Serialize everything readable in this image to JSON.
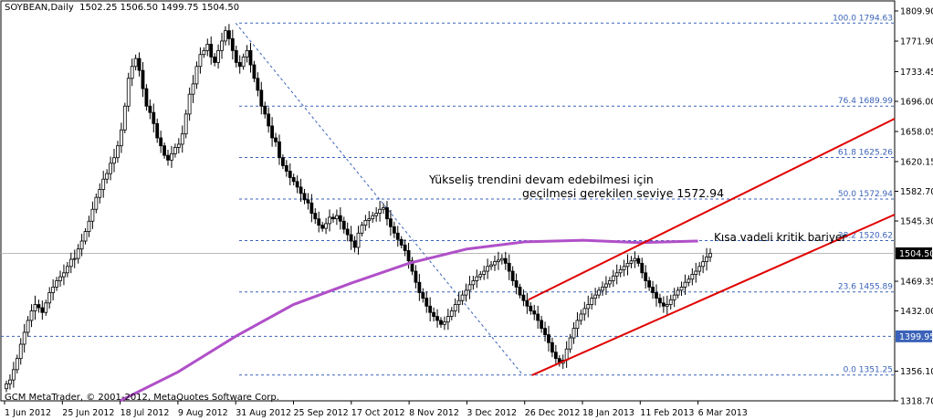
{
  "header": {
    "symbol": "SOYBEAN,Daily",
    "ohlc": "1502.25 1506.50 1499.75 1504.50"
  },
  "copyright": "GCM MetaTrader, © 2001-2012, MetaQuotes Software Corp.",
  "annotations": {
    "trend_line1": "Yükseliş trendini devam edebilmesi için",
    "trend_line2": "geçilmesi gerekilen seviye 1572.94",
    "barrier": "Kısa vadeli kritik bariyer"
  },
  "colors": {
    "candle": "#000000",
    "ma": "#b050c8",
    "channel": "#e00000",
    "fib": "#3a62b8",
    "fib_text": "#3a62b8",
    "grid_border": "#000000"
  },
  "chart_data": {
    "type": "candlestick",
    "current_price": "1504.50",
    "support_label": "1399.95",
    "y_axis": {
      "min": 1318.7,
      "max": 1809.9,
      "ticks": [
        "1809.90",
        "1771.90",
        "1733.45",
        "1696.00",
        "1658.05",
        "1620.15",
        "1582.70",
        "1545.30",
        "1469.35",
        "1432.00",
        "1356.10",
        "1318.70"
      ]
    },
    "x_axis": {
      "labels": [
        "1 Jun 2012",
        "25 Jun 2012",
        "18 Jul 2012",
        "9 Aug 2012",
        "31 Aug 2012",
        "25 Sep 2012",
        "17 Oct 2012",
        "8 Nov 2012",
        "3 Dec 2012",
        "26 Dec 2012",
        "18 Jan 2013",
        "11 Feb 2013",
        "6 Mar 2013"
      ]
    },
    "fibonacci": [
      {
        "label": "100.0 1794.63",
        "value": 1794.63
      },
      {
        "label": "76.4 1689.99",
        "value": 1689.99
      },
      {
        "label": "61.8 1625.26",
        "value": 1625.26
      },
      {
        "label": "50.0 1572.94",
        "value": 1572.94
      },
      {
        "label": "38.2 1520.62",
        "value": 1520.62
      },
      {
        "label": "23.6 1455.89",
        "value": 1455.89
      },
      {
        "label": "0.0 1351.25",
        "value": 1351.25
      }
    ],
    "support_level": 1399.95,
    "moving_average": [
      {
        "x": "18 Jul 2012",
        "y": 1318.7
      },
      {
        "x": "9 Aug 2012",
        "y": 1355
      },
      {
        "x": "31 Aug 2012",
        "y": 1400
      },
      {
        "x": "25 Sep 2012",
        "y": 1440
      },
      {
        "x": "17 Oct 2012",
        "y": 1467
      },
      {
        "x": "8 Nov 2012",
        "y": 1492
      },
      {
        "x": "3 Dec 2012",
        "y": 1510
      },
      {
        "x": "26 Dec 2012",
        "y": 1519
      },
      {
        "x": "18 Jan 2013",
        "y": 1521
      },
      {
        "x": "11 Feb 2013",
        "y": 1518
      },
      {
        "x": "6 Mar 2013",
        "y": 1520
      }
    ],
    "channel_upper": [
      {
        "x": "26 Dec 2012",
        "y": 1446
      },
      {
        "x": "6 Mar 2013",
        "y": 1530
      }
    ],
    "channel_lower": [
      {
        "x": "26 Dec 2012",
        "y": 1351
      },
      {
        "x": "6 Mar 2013",
        "y": 1448
      }
    ],
    "fib_drawn_from": [
      {
        "x": "31 Aug 2012",
        "y": 1794.63
      },
      {
        "x": "26 Dec 2012",
        "y": 1351.25
      }
    ],
    "closes": [
      1340,
      1345,
      1358,
      1372,
      1390,
      1405,
      1420,
      1432,
      1440,
      1436,
      1430,
      1442,
      1455,
      1462,
      1470,
      1475,
      1480,
      1488,
      1497,
      1498,
      1510,
      1520,
      1532,
      1545,
      1560,
      1575,
      1585,
      1598,
      1605,
      1618,
      1625,
      1640,
      1660,
      1690,
      1725,
      1740,
      1750,
      1735,
      1712,
      1690,
      1682,
      1668,
      1650,
      1640,
      1628,
      1622,
      1630,
      1638,
      1642,
      1655,
      1680,
      1705,
      1718,
      1740,
      1755,
      1760,
      1768,
      1752,
      1745,
      1760,
      1772,
      1785,
      1775,
      1760,
      1745,
      1740,
      1752,
      1760,
      1742,
      1725,
      1710,
      1690,
      1680,
      1665,
      1650,
      1645,
      1625,
      1615,
      1608,
      1600,
      1595,
      1588,
      1580,
      1572,
      1568,
      1555,
      1548,
      1540,
      1536,
      1542,
      1550,
      1548,
      1552,
      1545,
      1535,
      1528,
      1520,
      1512,
      1530,
      1540,
      1546,
      1548,
      1552,
      1555,
      1560,
      1562,
      1548,
      1538,
      1530,
      1522,
      1515,
      1508,
      1495,
      1482,
      1468,
      1455,
      1448,
      1438,
      1430,
      1425,
      1420,
      1415,
      1418,
      1425,
      1432,
      1440,
      1445,
      1452,
      1458,
      1465,
      1470,
      1475,
      1478,
      1482,
      1488,
      1490,
      1494,
      1496,
      1498,
      1492,
      1482,
      1470,
      1462,
      1452,
      1445,
      1438,
      1432,
      1428,
      1420,
      1410,
      1402,
      1392,
      1380,
      1372,
      1366,
      1370,
      1384,
      1398,
      1410,
      1420,
      1428,
      1435,
      1440,
      1448,
      1452,
      1458,
      1462,
      1466,
      1470,
      1476,
      1480,
      1484,
      1488,
      1492,
      1495,
      1498,
      1492,
      1480,
      1470,
      1462,
      1455,
      1448,
      1442,
      1438,
      1440,
      1446,
      1452,
      1458,
      1462,
      1468,
      1472,
      1478,
      1482,
      1488,
      1494,
      1500,
      1504.5
    ]
  }
}
